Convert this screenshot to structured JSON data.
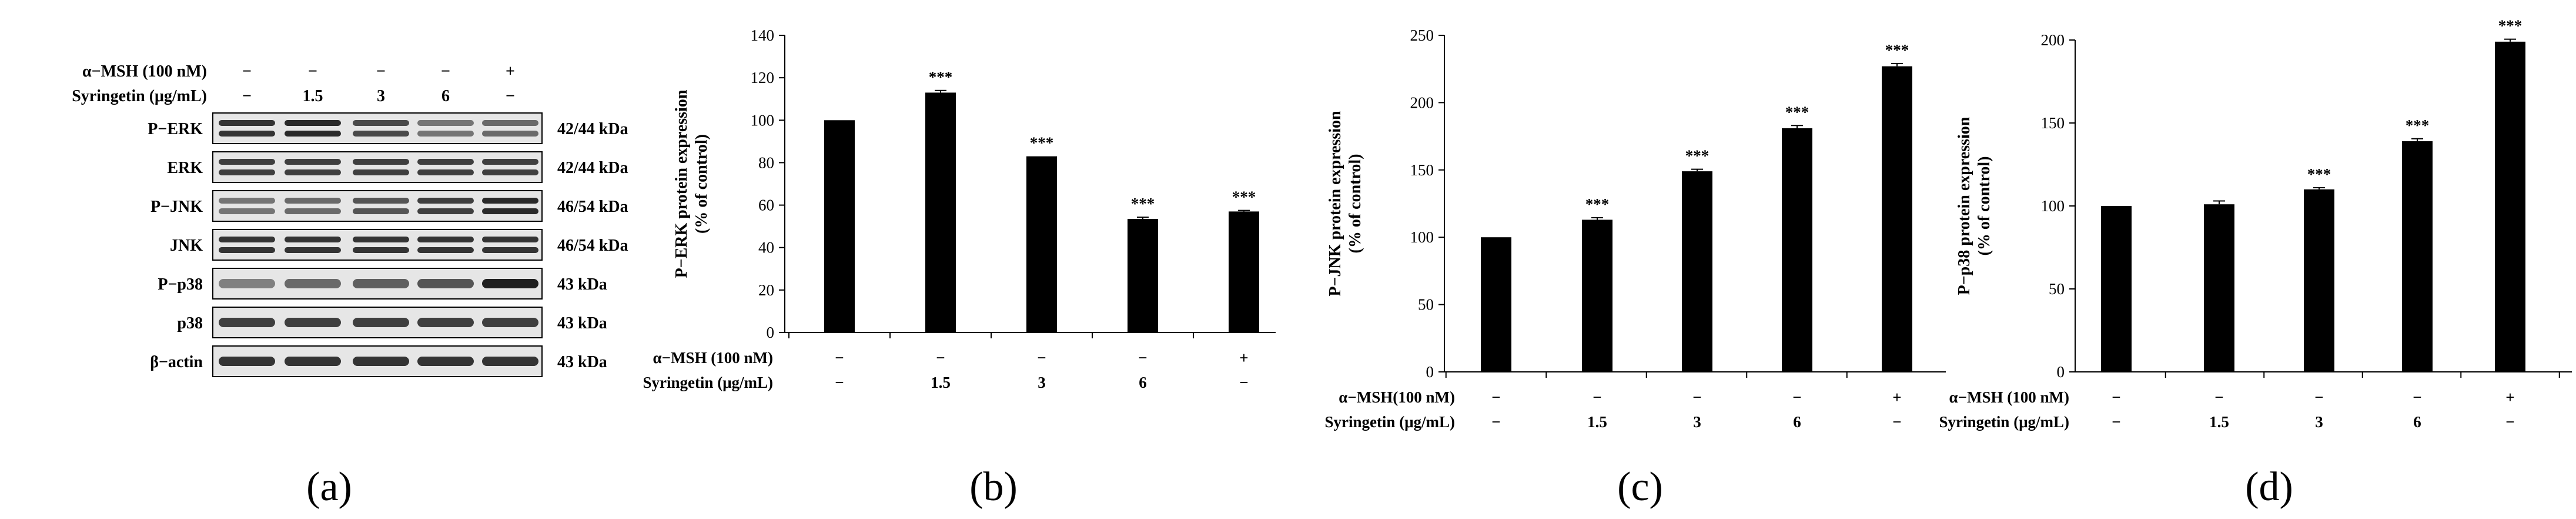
{
  "figure": {
    "panels": [
      {
        "id": "a",
        "label": "(a)",
        "treatments": [
          {
            "name": "α−MSH (100 nM)",
            "values": [
              "−",
              "−",
              "−",
              "−",
              "+"
            ]
          },
          {
            "name": "Syringetin  (μg/mL)",
            "values": [
              "−",
              "1.5",
              "3",
              "6",
              "−"
            ]
          }
        ],
        "blots": [
          {
            "protein": "P−ERK",
            "size": "42/44 kDa",
            "bands": 2,
            "intensity": [
              0.85,
              0.9,
              0.75,
              0.55,
              0.6
            ]
          },
          {
            "protein": "ERK",
            "size": "42/44 kDa",
            "bands": 2,
            "intensity": [
              0.8,
              0.8,
              0.8,
              0.8,
              0.8
            ]
          },
          {
            "protein": "P−JNK",
            "size": "46/54 kDa",
            "bands": 2,
            "intensity": [
              0.55,
              0.6,
              0.7,
              0.8,
              0.9
            ]
          },
          {
            "protein": "JNK",
            "size": "46/54 kDa",
            "bands": 2,
            "intensity": [
              0.85,
              0.85,
              0.85,
              0.85,
              0.85
            ]
          },
          {
            "protein": "P−p38",
            "size": "43 kDa",
            "bands": 1,
            "intensity": [
              0.5,
              0.6,
              0.65,
              0.7,
              0.95
            ]
          },
          {
            "protein": "p38",
            "size": "43 kDa",
            "bands": 1,
            "intensity": [
              0.8,
              0.8,
              0.8,
              0.8,
              0.8
            ]
          },
          {
            "protein": "β−actin",
            "size": "43 kDa",
            "bands": 1,
            "intensity": [
              0.85,
              0.85,
              0.85,
              0.85,
              0.85
            ]
          }
        ]
      }
    ]
  },
  "chart_data": [
    {
      "panel": "(b)",
      "type": "bar",
      "ylabel": "P−ERK protein expression",
      "ylabel2": "(% of control)",
      "ylim": [
        0,
        140
      ],
      "yticks": [
        0,
        20,
        40,
        60,
        80,
        100,
        120,
        140
      ],
      "values": [
        100,
        113,
        83,
        53.5,
        57
      ],
      "errors": [
        0,
        1,
        0,
        0.8,
        0.5
      ],
      "significance": [
        "",
        "***",
        "***",
        "***",
        "***"
      ],
      "rows": [
        {
          "label": "α−MSH (100 nM)",
          "values": [
            "−",
            "−",
            "−",
            "−",
            "+"
          ]
        },
        {
          "label": "Syringetin  (μg/mL)",
          "values": [
            "−",
            "1.5",
            "3",
            "6",
            "−"
          ]
        }
      ]
    },
    {
      "panel": "(c)",
      "type": "bar",
      "ylabel": "P−JNK protein expression",
      "ylabel2": "(% of control)",
      "ylim": [
        0,
        250
      ],
      "yticks": [
        0,
        50,
        100,
        150,
        200,
        250
      ],
      "values": [
        100,
        113,
        149,
        181,
        227
      ],
      "errors": [
        0,
        1.5,
        1.5,
        2,
        2
      ],
      "significance": [
        "",
        "***",
        "***",
        "***",
        "***"
      ],
      "rows": [
        {
          "label": "α−MSH(100 nM)",
          "values": [
            "−",
            "−",
            "−",
            "−",
            "+"
          ]
        },
        {
          "label": "Syringetin  (μg/mL)",
          "values": [
            "−",
            "1.5",
            "3",
            "6",
            "−"
          ]
        }
      ]
    },
    {
      "panel": "(d)",
      "type": "bar",
      "ylabel": "P−p38 protein expression",
      "ylabel2": "(% of control)",
      "ylim": [
        0,
        200
      ],
      "yticks": [
        0,
        50,
        100,
        150,
        200
      ],
      "values": [
        100,
        101,
        110,
        139,
        199
      ],
      "errors": [
        0,
        2,
        1,
        1.5,
        1.5
      ],
      "significance": [
        "",
        "",
        "***",
        "***",
        "***"
      ],
      "rows": [
        {
          "label": "α−MSH (100 nM)",
          "values": [
            "−",
            "−",
            "−",
            "−",
            "+"
          ]
        },
        {
          "label": "Syringetin  (μg/mL)",
          "values": [
            "−",
            "1.5",
            "3",
            "6",
            "−"
          ]
        }
      ]
    }
  ]
}
